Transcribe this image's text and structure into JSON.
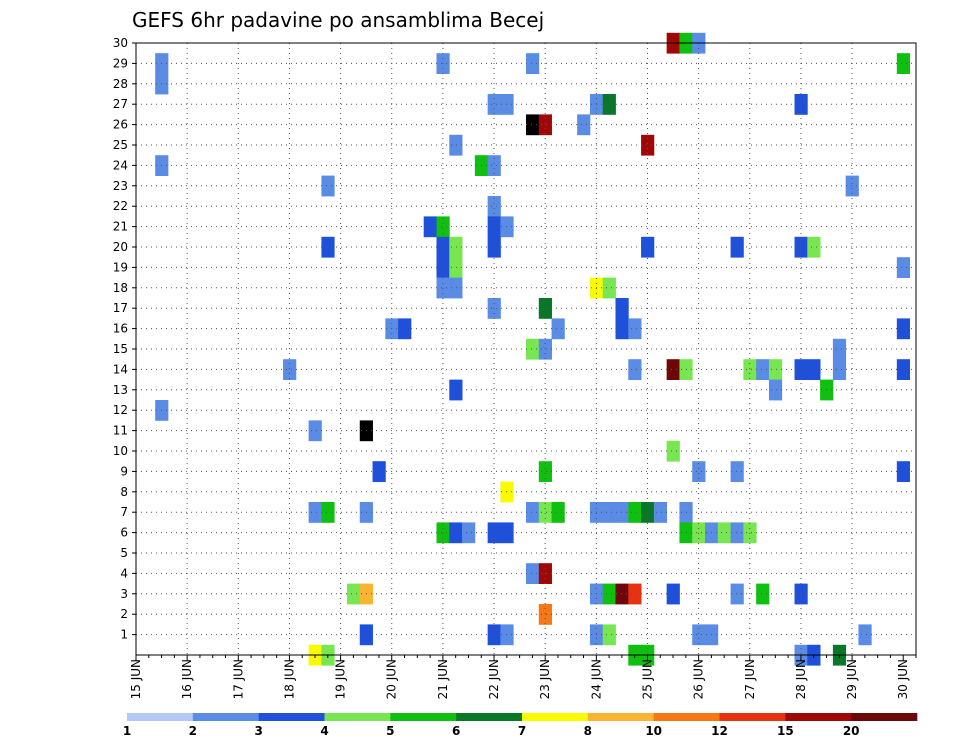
{
  "chart_data": {
    "type": "heatmap",
    "title": "GEFS 6hr padavine po ansamblima Becej",
    "x_tick_labels": [
      "15 JUN",
      "16 JUN",
      "17 JUN",
      "18 JUN",
      "19 JUN",
      "20 JUN",
      "21 JUN",
      "22 JUN",
      "23 JUN",
      "24 JUN",
      "25 JUN",
      "26 JUN",
      "27 JUN",
      "28 JUN",
      "29 JUN",
      "30 JUN"
    ],
    "y_tick_labels": [
      "1",
      "2",
      "3",
      "4",
      "5",
      "6",
      "7",
      "8",
      "9",
      "10",
      "11",
      "12",
      "13",
      "14",
      "15",
      "16",
      "17",
      "18",
      "19",
      "20",
      "21",
      "22",
      "23",
      "24",
      "25",
      "26",
      "27",
      "28",
      "29",
      "30"
    ],
    "xlim": [
      0,
      61
    ],
    "ylim": [
      0,
      30
    ],
    "grid": true,
    "colorbar": {
      "placement": "bottom",
      "labels": [
        "1",
        "2",
        "3",
        "4",
        "5",
        "6",
        "7",
        "8",
        "10",
        "12",
        "15",
        "20"
      ],
      "colors": [
        "#b4c8f5",
        "#5a8ce6",
        "#1e50dc",
        "#78e650",
        "#10c010",
        "#087828",
        "#fafa00",
        "#fab432",
        "#f57814",
        "#e63210",
        "#a00808",
        "#6e0808"
      ]
    },
    "cells": [
      [
        2,
        29,
        1
      ],
      [
        2,
        28,
        1
      ],
      [
        2,
        24,
        1
      ],
      [
        2,
        12,
        1
      ],
      [
        12,
        14,
        1
      ],
      [
        15,
        23,
        1
      ],
      [
        15,
        20,
        2
      ],
      [
        14,
        11,
        1
      ],
      [
        14,
        7,
        1
      ],
      [
        15,
        7,
        4
      ],
      [
        14,
        0,
        6
      ],
      [
        15,
        0,
        3
      ],
      [
        18,
        11,
        12
      ],
      [
        18,
        7,
        1
      ],
      [
        19,
        9,
        2
      ],
      [
        17,
        3,
        3
      ],
      [
        18,
        3,
        7
      ],
      [
        18,
        1,
        2
      ],
      [
        20,
        16,
        1
      ],
      [
        21,
        16,
        2
      ],
      [
        23,
        21,
        2
      ],
      [
        24,
        21,
        4
      ],
      [
        24,
        20,
        2
      ],
      [
        25,
        20,
        3
      ],
      [
        24,
        19,
        2
      ],
      [
        25,
        19,
        3
      ],
      [
        24,
        18,
        1
      ],
      [
        25,
        18,
        1
      ],
      [
        24,
        29,
        1
      ],
      [
        25,
        25,
        1
      ],
      [
        25,
        13,
        2
      ],
      [
        24,
        6,
        4
      ],
      [
        25,
        6,
        2
      ],
      [
        26,
        6,
        1
      ],
      [
        27,
        24,
        4
      ],
      [
        28,
        24,
        1
      ],
      [
        28,
        27,
        1
      ],
      [
        29,
        27,
        1
      ],
      [
        28,
        22,
        1
      ],
      [
        28,
        21,
        2
      ],
      [
        29,
        21,
        1
      ],
      [
        28,
        20,
        2
      ],
      [
        28,
        17,
        1
      ],
      [
        28,
        6,
        2
      ],
      [
        29,
        6,
        2
      ],
      [
        29,
        8,
        6
      ],
      [
        28,
        1,
        2
      ],
      [
        29,
        1,
        1
      ],
      [
        31,
        29,
        1
      ],
      [
        31,
        26,
        12
      ],
      [
        32,
        26,
        10
      ],
      [
        31,
        15,
        3
      ],
      [
        32,
        15,
        1
      ],
      [
        32,
        17,
        5
      ],
      [
        33,
        16,
        1
      ],
      [
        32,
        9,
        4
      ],
      [
        31,
        7,
        1
      ],
      [
        32,
        7,
        3
      ],
      [
        33,
        7,
        4
      ],
      [
        31,
        4,
        1
      ],
      [
        32,
        4,
        10
      ],
      [
        32,
        2,
        8
      ],
      [
        35,
        26,
        1
      ],
      [
        36,
        27,
        1
      ],
      [
        37,
        27,
        5
      ],
      [
        36,
        18,
        6
      ],
      [
        37,
        18,
        3
      ],
      [
        38,
        17,
        2
      ],
      [
        38,
        16,
        2
      ],
      [
        39,
        16,
        1
      ],
      [
        39,
        14,
        1
      ],
      [
        36,
        7,
        1
      ],
      [
        37,
        7,
        1
      ],
      [
        36,
        3,
        1
      ],
      [
        37,
        3,
        4
      ],
      [
        36,
        1,
        1
      ],
      [
        37,
        1,
        3
      ],
      [
        40,
        25,
        10
      ],
      [
        40,
        20,
        2
      ],
      [
        38,
        7,
        1
      ],
      [
        39,
        7,
        4
      ],
      [
        40,
        7,
        5
      ],
      [
        41,
        7,
        1
      ],
      [
        38,
        3,
        11
      ],
      [
        39,
        3,
        9
      ],
      [
        39,
        0,
        4
      ],
      [
        40,
        0,
        4
      ],
      [
        42,
        30,
        10
      ],
      [
        43,
        30,
        4
      ],
      [
        44,
        30,
        1
      ],
      [
        42,
        14,
        11
      ],
      [
        43,
        14,
        3
      ],
      [
        42,
        10,
        3
      ],
      [
        43,
        7,
        1
      ],
      [
        42,
        3,
        2
      ],
      [
        43,
        6,
        4
      ],
      [
        44,
        6,
        3
      ],
      [
        45,
        6,
        1
      ],
      [
        46,
        6,
        3
      ],
      [
        44,
        9,
        1
      ],
      [
        44,
        1,
        1
      ],
      [
        45,
        1,
        1
      ],
      [
        47,
        20,
        2
      ],
      [
        48,
        14,
        3
      ],
      [
        49,
        14,
        1
      ],
      [
        50,
        14,
        3
      ],
      [
        50,
        13,
        1
      ],
      [
        47,
        9,
        1
      ],
      [
        47,
        6,
        1
      ],
      [
        48,
        6,
        3
      ],
      [
        47,
        3,
        1
      ],
      [
        49,
        3,
        4
      ],
      [
        52,
        27,
        2
      ],
      [
        52,
        20,
        2
      ],
      [
        53,
        20,
        3
      ],
      [
        52,
        14,
        2
      ],
      [
        53,
        14,
        2
      ],
      [
        52,
        3,
        2
      ],
      [
        52,
        0,
        1
      ],
      [
        53,
        0,
        2
      ],
      [
        55,
        15,
        1
      ],
      [
        55,
        14,
        1
      ],
      [
        54,
        13,
        4
      ],
      [
        55,
        0,
        5
      ],
      [
        56,
        23,
        1
      ],
      [
        57,
        1,
        1
      ],
      [
        60,
        29,
        4
      ],
      [
        60,
        19,
        1
      ],
      [
        60,
        16,
        2
      ],
      [
        60,
        14,
        2
      ],
      [
        60,
        9,
        2
      ]
    ]
  }
}
